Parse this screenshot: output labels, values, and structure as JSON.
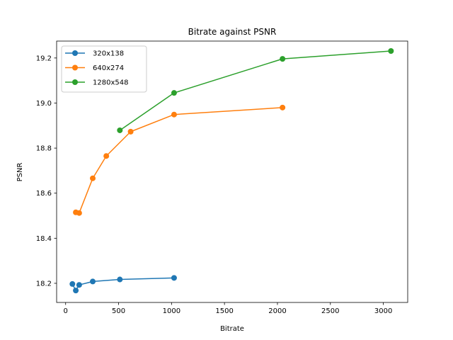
{
  "chart_data": {
    "type": "line",
    "title": "Bitrate against PSNR",
    "xlabel": "Bitrate",
    "ylabel": "PSNR",
    "xlim": [
      -85,
      3230
    ],
    "ylim": [
      18.115,
      19.275
    ],
    "xticks": [
      0,
      500,
      1000,
      1500,
      2000,
      2500,
      3000
    ],
    "yticks": [
      18.2,
      18.4,
      18.6,
      18.8,
      19.0,
      19.2
    ],
    "xtick_labels": [
      "0",
      "500",
      "1000",
      "1500",
      "2000",
      "2500",
      "3000"
    ],
    "ytick_labels": [
      "18.2",
      "18.4",
      "18.6",
      "18.8",
      "19.0",
      "19.2"
    ],
    "grid": false,
    "legend_position": "upper left",
    "series": [
      {
        "name": "320x138",
        "color": "#1f77b4",
        "x": [
          64,
          96,
          128,
          256,
          512,
          1024
        ],
        "y": [
          18.197,
          18.168,
          18.193,
          18.208,
          18.217,
          18.224
        ]
      },
      {
        "name": "640x274",
        "color": "#ff7f0e",
        "x": [
          96,
          128,
          256,
          384,
          614,
          1024,
          2048
        ],
        "y": [
          18.515,
          18.512,
          18.666,
          18.765,
          18.873,
          18.949,
          18.98
        ]
      },
      {
        "name": "1280x548",
        "color": "#2ca02c",
        "x": [
          512,
          1024,
          2048,
          3072
        ],
        "y": [
          18.879,
          19.045,
          19.196,
          19.231
        ]
      }
    ]
  }
}
